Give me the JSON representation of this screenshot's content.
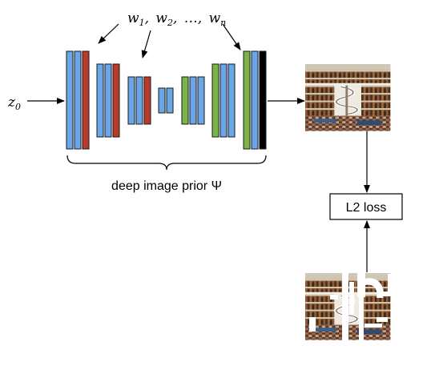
{
  "weights": {
    "w1": "w",
    "w1_sub": "1",
    "w2": "w",
    "w2_sub": "2",
    "ellipsis": "…",
    "wn": "w",
    "wn_sub": "n",
    "sep1": ",",
    "sep2": ",",
    "sep3": ","
  },
  "input": {
    "z": "z",
    "z_sub": "0"
  },
  "network_label": "deep image prior Ψ",
  "loss_label": "L2 loss",
  "colors": {
    "blue": "#6aa6e8",
    "red": "#b73a2a",
    "green": "#7bb54a",
    "black": "#000000",
    "stroke": "#1a1a1a"
  },
  "icons": {
    "output_image": "library-photo",
    "target_image": "masked-library-photo"
  }
}
